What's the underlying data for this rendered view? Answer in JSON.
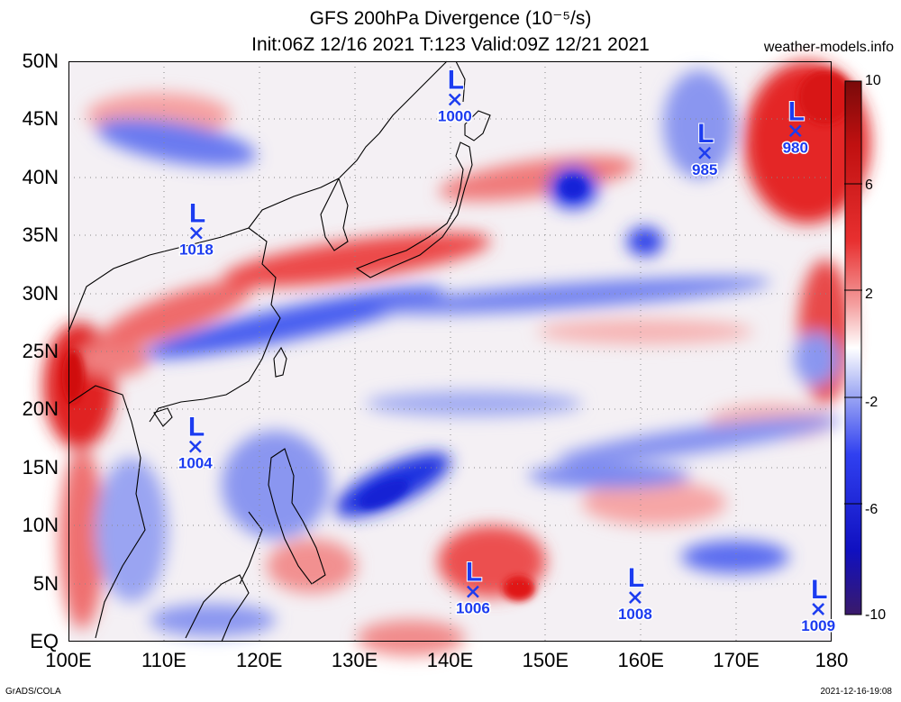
{
  "title": {
    "line1": "GFS 200hPa Divergence (10⁻⁵/s)",
    "line2": "Init:06Z 12/16 2021 T:123 Valid:09Z 12/21 2021",
    "site": "weather-models.info"
  },
  "footer": {
    "left": "GrADS/COLA",
    "right": "2021-12-16-19:08"
  },
  "axes": {
    "x_ticks": [
      "100E",
      "110E",
      "120E",
      "130E",
      "140E",
      "150E",
      "160E",
      "170E",
      "180"
    ],
    "y_ticks": [
      "50N",
      "45N",
      "40N",
      "35N",
      "30N",
      "25N",
      "20N",
      "15N",
      "10N",
      "5N",
      "EQ"
    ],
    "lon_range": [
      100,
      180
    ],
    "lat_range": [
      0,
      50
    ],
    "grid": "dotted"
  },
  "colorbar": {
    "labels": [
      "10",
      "6",
      "2",
      "-2",
      "-6",
      "-10"
    ],
    "range": [
      -10,
      10
    ]
  },
  "low_pressure_centers": [
    {
      "letter": "L",
      "pressure": "1000",
      "lon": 140.5,
      "lat": 46.7
    },
    {
      "letter": "L",
      "pressure": "1018",
      "lon": 113.4,
      "lat": 35.2
    },
    {
      "letter": "L",
      "pressure": "985",
      "lon": 166.7,
      "lat": 42.1
    },
    {
      "letter": "L",
      "pressure": "980",
      "lon": 176.2,
      "lat": 44.0
    },
    {
      "letter": "L",
      "pressure": "1004",
      "lon": 113.3,
      "lat": 16.8
    },
    {
      "letter": "L",
      "pressure": "1006",
      "lon": 142.4,
      "lat": 4.3
    },
    {
      "letter": "L",
      "pressure": "1008",
      "lon": 159.4,
      "lat": 3.8
    },
    {
      "letter": "L",
      "pressure": "1009",
      "lon": 178.6,
      "lat": 2.8
    }
  ],
  "colors": {
    "positive": "#e01010",
    "negative": "#1a2ef0",
    "neutral": "#ffffff",
    "marker": "#1c3cf0"
  }
}
